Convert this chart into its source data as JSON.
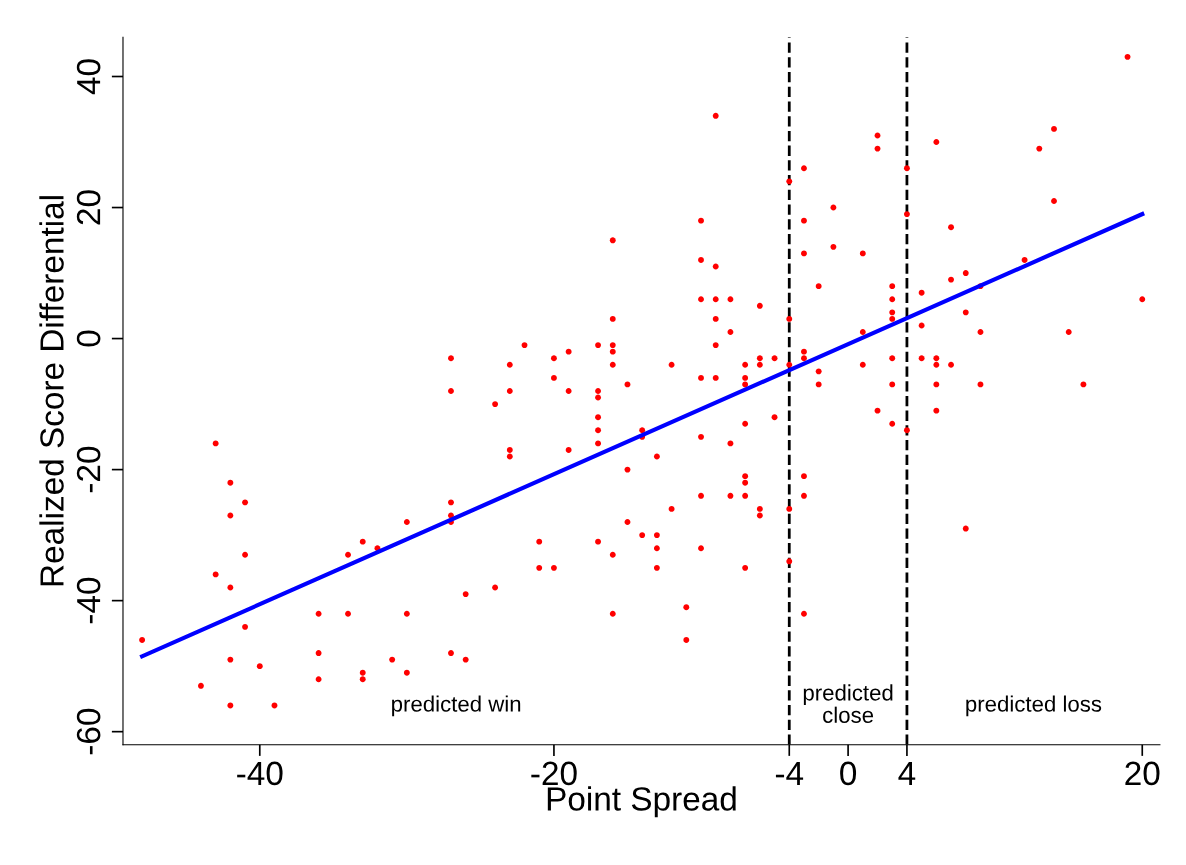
{
  "chart_data": {
    "type": "scatter",
    "xlabel": "Point Spread",
    "ylabel": "Realized Score Differential",
    "xlim": [
      -49.3,
      21.2
    ],
    "ylim": [
      -62,
      46
    ],
    "xticks": [
      -40,
      -20,
      -4,
      0,
      4,
      20
    ],
    "yticks": [
      -60,
      -40,
      -20,
      0,
      20,
      40
    ],
    "grid": false,
    "legend": false,
    "series": [
      {
        "marker": "circle",
        "color": "#ff0000",
        "x": [
          -48,
          -44,
          -43,
          -43,
          -42,
          -42,
          -42,
          -42,
          -42,
          -41,
          -41,
          -41,
          -40,
          -39,
          -36,
          -36,
          -36,
          -34,
          -34,
          -33,
          -33,
          -33,
          -32,
          -31,
          -30,
          -30,
          -30,
          -27,
          -27,
          -27,
          -27,
          -27,
          -27,
          -26,
          -26,
          -24,
          -24,
          -23,
          -23,
          -23,
          -23,
          -22,
          -21,
          -21,
          -20,
          -20,
          -20,
          -19,
          -19,
          -19,
          -17,
          -17,
          -17,
          -17,
          -17,
          -17,
          -17,
          -16,
          -16,
          -16,
          -16,
          -16,
          -16,
          -16,
          -15,
          -15,
          -15,
          -14,
          -14,
          -14,
          -13,
          -13,
          -13,
          -13,
          -12,
          -12,
          -11,
          -11,
          -10,
          -10,
          -10,
          -10,
          -10,
          -10,
          -10,
          -9,
          -9,
          -9,
          -9,
          -9,
          -9,
          -8,
          -8,
          -8,
          -8,
          -7,
          -7,
          -7,
          -7,
          -7,
          -7,
          -7,
          -7,
          -6,
          -6,
          -6,
          -6,
          -6,
          -5,
          -5,
          -4,
          -4,
          -4,
          -4,
          -4,
          -3,
          -3,
          -3,
          -3,
          -3,
          -3,
          -3,
          -3,
          -2,
          -2,
          -2,
          -1,
          -1,
          1,
          1,
          1,
          2,
          2,
          2,
          3,
          3,
          3,
          3,
          3,
          3,
          3,
          4,
          4,
          4,
          5,
          5,
          5,
          6,
          6,
          6,
          6,
          6,
          7,
          7,
          7,
          8,
          8,
          8,
          9,
          9,
          9,
          12,
          13,
          14,
          14,
          15,
          16,
          19,
          20
        ],
        "values": [
          -46,
          -53,
          -16,
          -36,
          -22,
          -27,
          -38,
          -49,
          -56,
          -25,
          -33,
          -44,
          -50,
          -56,
          -42,
          -48,
          -52,
          -33,
          -42,
          -31,
          -51,
          -52,
          -32,
          -49,
          -28,
          -42,
          -51,
          -3,
          -8,
          -25,
          -27,
          -28,
          -48,
          -39,
          -49,
          -10,
          -38,
          -4,
          -8,
          -17,
          -18,
          -1,
          -31,
          -35,
          -3,
          -6,
          -35,
          -2,
          -8,
          -17,
          -1,
          -8,
          -9,
          -12,
          -14,
          -16,
          -31,
          15,
          3,
          -1,
          -2,
          -4,
          -33,
          -42,
          -7,
          -20,
          -28,
          -14,
          -15,
          -30,
          -18,
          -30,
          -32,
          -35,
          -4,
          -26,
          -41,
          -46,
          18,
          12,
          6,
          -6,
          -15,
          -24,
          -32,
          34,
          11,
          6,
          3,
          -1,
          -6,
          6,
          1,
          -16,
          -24,
          -4,
          -6,
          -7,
          -13,
          -21,
          -22,
          -24,
          -35,
          5,
          -3,
          -4,
          -26,
          -27,
          -3,
          -12,
          24,
          3,
          -4,
          -26,
          -34,
          26,
          18,
          13,
          -2,
          -3,
          -21,
          -24,
          -42,
          8,
          -5,
          -7,
          20,
          14,
          13,
          1,
          -4,
          31,
          29,
          -11,
          8,
          6,
          4,
          3,
          -3,
          -7,
          -13,
          26,
          19,
          -14,
          7,
          2,
          -3,
          30,
          -3,
          -4,
          -7,
          -11,
          17,
          9,
          -4,
          10,
          4,
          -29,
          8,
          1,
          -7,
          12,
          29,
          32,
          21,
          1,
          -7,
          43,
          6
        ]
      },
      {
        "type": "line",
        "color": "#0000ff",
        "line_style": "solid",
        "x": [
          -48,
          20
        ],
        "values": [
          -48.5,
          19
        ]
      }
    ],
    "ref_lines": [
      {
        "axis": "x",
        "value": -4,
        "color": "#000000",
        "line_style": "dashed"
      },
      {
        "axis": "x",
        "value": 4,
        "color": "#000000",
        "line_style": "dashed"
      }
    ],
    "annotations": [
      "predicted win",
      "predicted\nclose",
      "predicted loss"
    ]
  }
}
